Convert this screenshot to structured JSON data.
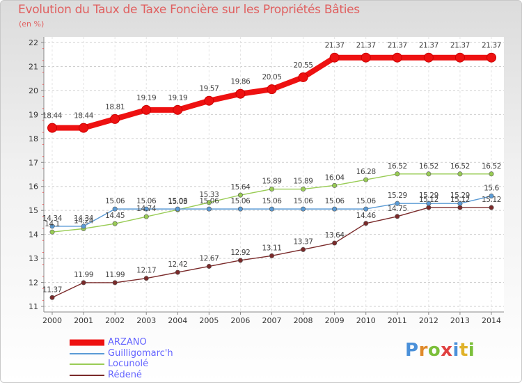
{
  "header": {
    "title": "Evolution du Taux de Taxe Foncière sur les Propriétés Bâties",
    "unit": "(en %)"
  },
  "chart_data": {
    "type": "line",
    "title": "Evolution du Taux de Taxe Foncière sur les Propriétés Bâties",
    "ylabel": "(en %)",
    "xlabel": "",
    "x": [
      "2000",
      "2001",
      "2002",
      "2003",
      "2004",
      "2005",
      "2006",
      "2007",
      "2008",
      "2009",
      "2010",
      "2011",
      "2012",
      "2013",
      "2014"
    ],
    "ylim": [
      11,
      22
    ],
    "yticks": [
      "11",
      "12",
      "13",
      "14",
      "15",
      "16",
      "17",
      "18",
      "19",
      "20",
      "21",
      "22"
    ],
    "series": [
      {
        "name": "ARZANO",
        "color": "#ee1111",
        "values": [
          18.44,
          18.44,
          18.81,
          19.19,
          19.19,
          19.57,
          19.86,
          20.05,
          20.55,
          21.37,
          21.37,
          21.37,
          21.37,
          21.37,
          21.37
        ],
        "labels": [
          "18.44",
          "18.44",
          "18.81",
          "19.19",
          "19.19",
          "19.57",
          "19.86",
          "20.05",
          "20.55",
          "21.37",
          "21.37",
          "21.37",
          "21.37",
          "21.37",
          "21.37"
        ]
      },
      {
        "name": "Guilligomarc'h",
        "color": "#5b9bd5",
        "values": [
          14.34,
          14.34,
          15.06,
          15.06,
          15.06,
          15.06,
          15.06,
          15.06,
          15.06,
          15.06,
          15.06,
          15.29,
          15.29,
          15.29,
          15.6
        ],
        "labels": [
          "14.34",
          "14.34",
          "15.06",
          "15.06",
          "15.06",
          "15.06",
          "15.06",
          "15.06",
          "15.06",
          "15.06",
          "15.06",
          "15.29",
          "15.29",
          "15.29",
          "15.6"
        ]
      },
      {
        "name": "Locunolé",
        "color": "#99cc55",
        "values": [
          14.1,
          14.24,
          14.45,
          14.74,
          15.03,
          15.33,
          15.64,
          15.89,
          15.89,
          16.04,
          16.28,
          16.52,
          16.52,
          16.52,
          16.52
        ],
        "labels": [
          "14.1",
          "14.24",
          "14.45",
          "14.74",
          "15.03",
          "15.33",
          "15.64",
          "15.89",
          "15.89",
          "16.04",
          "16.28",
          "16.52",
          "16.52",
          "16.52",
          "16.52"
        ]
      },
      {
        "name": "Rédené",
        "color": "#7a2a2a",
        "values": [
          11.37,
          11.99,
          11.99,
          12.17,
          12.42,
          12.67,
          12.92,
          13.11,
          13.37,
          13.64,
          14.46,
          14.75,
          15.12,
          15.12,
          15.12
        ],
        "labels": [
          "11.37",
          "11.99",
          "11.99",
          "12.17",
          "12.42",
          "12.67",
          "12.92",
          "13.11",
          "13.37",
          "13.64",
          "14.46",
          "14.75",
          "15.12",
          "15.12",
          "15.12"
        ]
      }
    ]
  },
  "legend": {
    "items": [
      {
        "label": "ARZANO",
        "color": "#ee1111"
      },
      {
        "label": "Guilligomarc'h",
        "color": "#5b9bd5"
      },
      {
        "label": "Locunolé",
        "color": "#99cc55"
      },
      {
        "label": "Rédené",
        "color": "#7a2a2a"
      }
    ]
  },
  "brand": {
    "letters": [
      "P",
      "r",
      "o",
      "x",
      "i",
      "t",
      "i"
    ],
    "colors": [
      "#4a90d9",
      "#e08a2a",
      "#7bbf3a",
      "#e04040",
      "#4a90d9",
      "#e0b22a",
      "#7bbf3a"
    ]
  }
}
